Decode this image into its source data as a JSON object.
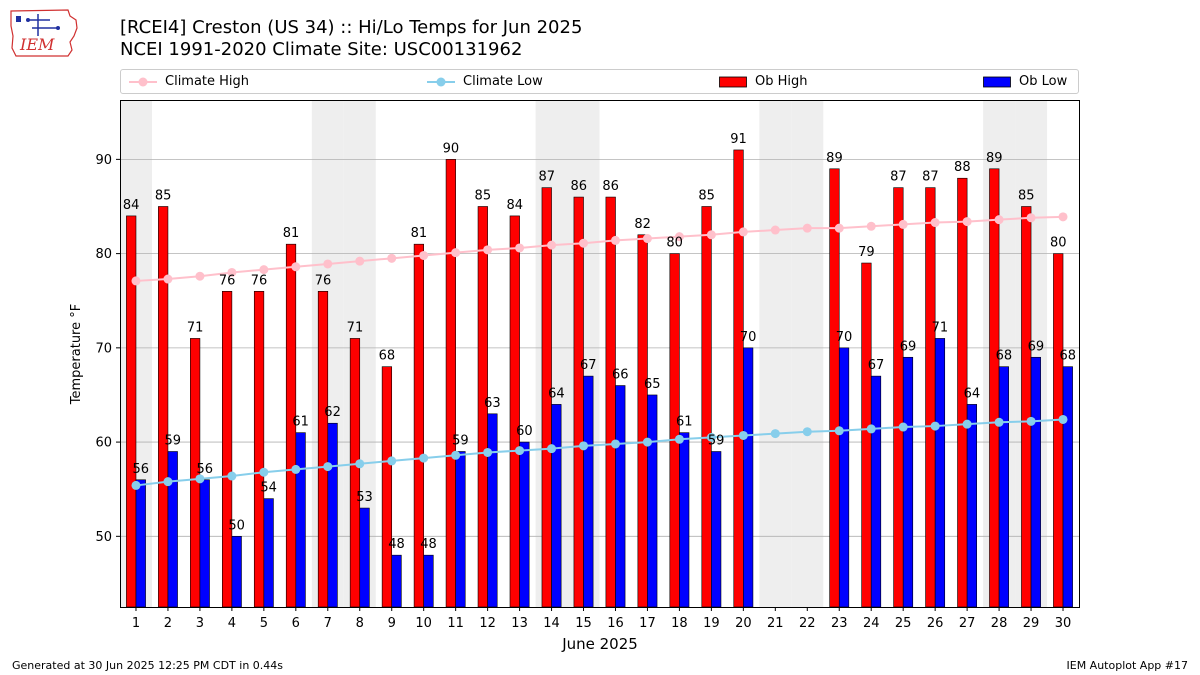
{
  "header": {
    "title_line1": "[RCEI4] Creston (US 34) :: Hi/Lo Temps for Jun 2025",
    "title_line2": "NCEI 1991-2020 Climate Site: USC00131962",
    "logo_text": "IEM"
  },
  "footer": {
    "left": "Generated at 30 Jun 2025 12:25 PM CDT in 0.44s",
    "right": "IEM Autoplot App #17"
  },
  "colors": {
    "climate_high": "#ffc0cb",
    "climate_low": "#87ceeb",
    "ob_high": "#ff0000",
    "ob_low": "#0000ff",
    "weekend_shading": "#eeeeee",
    "grid": "#b0b0b0"
  },
  "chart_data": {
    "type": "bar",
    "xlabel": "June 2025",
    "ylabel": "Temperature °F",
    "ylim": [
      42.5,
      96.3
    ],
    "yticks": [
      50,
      60,
      70,
      80,
      90
    ],
    "grid": "horizontal",
    "legend_placement": "top",
    "categories": [
      "1",
      "2",
      "3",
      "4",
      "5",
      "6",
      "7",
      "8",
      "9",
      "10",
      "11",
      "12",
      "13",
      "14",
      "15",
      "16",
      "17",
      "18",
      "19",
      "20",
      "21",
      "22",
      "23",
      "24",
      "25",
      "26",
      "27",
      "28",
      "29",
      "30"
    ],
    "shaded_days": [
      1,
      7,
      8,
      14,
      15,
      21,
      22,
      28,
      29
    ],
    "series": [
      {
        "name": "Ob High",
        "kind": "bar",
        "values": [
          84,
          85,
          71,
          76,
          76,
          81,
          76,
          71,
          68,
          81,
          90,
          85,
          84,
          87,
          86,
          86,
          82,
          80,
          85,
          91,
          null,
          null,
          89,
          79,
          87,
          87,
          88,
          89,
          85,
          80
        ],
        "labels": [
          "84",
          "85",
          "71",
          "76",
          "76",
          "81",
          "76",
          "71",
          "68",
          "81",
          "90",
          "85",
          "84",
          "87",
          "86",
          "86",
          "82",
          "80",
          "85",
          "91",
          "",
          "",
          "89",
          "79",
          "87",
          "87",
          "88",
          "89",
          "85",
          "80"
        ]
      },
      {
        "name": "Ob Low",
        "kind": "bar",
        "values": [
          56,
          59,
          56,
          50,
          54,
          61,
          62,
          53,
          48,
          48,
          59,
          63,
          60,
          64,
          67,
          66,
          65,
          61,
          59,
          70,
          null,
          null,
          70,
          67,
          69,
          71,
          64,
          68,
          69,
          68
        ],
        "labels": [
          "56",
          "59",
          "56",
          "50",
          "54",
          "61",
          "62",
          "53",
          "48",
          "48",
          "59",
          "63",
          "60",
          "64",
          "67",
          "66",
          "65",
          "61",
          "59",
          "70",
          "",
          "",
          "70",
          "67",
          "69",
          "71",
          "64",
          "68",
          "69",
          "68"
        ]
      },
      {
        "name": "Climate High",
        "kind": "line",
        "values": [
          77.1,
          77.3,
          77.6,
          78.0,
          78.3,
          78.6,
          78.9,
          79.2,
          79.5,
          79.8,
          80.1,
          80.4,
          80.6,
          80.9,
          81.1,
          81.4,
          81.6,
          81.8,
          82.0,
          82.3,
          82.5,
          82.7,
          82.7,
          82.9,
          83.1,
          83.3,
          83.4,
          83.6,
          83.8,
          83.9
        ]
      },
      {
        "name": "Climate Low",
        "kind": "line",
        "values": [
          55.4,
          55.8,
          56.1,
          56.4,
          56.8,
          57.1,
          57.4,
          57.7,
          58.0,
          58.3,
          58.6,
          58.9,
          59.1,
          59.3,
          59.6,
          59.8,
          60.0,
          60.3,
          60.5,
          60.7,
          60.9,
          61.1,
          61.2,
          61.4,
          61.6,
          61.7,
          61.9,
          62.1,
          62.2,
          62.4
        ]
      }
    ]
  }
}
